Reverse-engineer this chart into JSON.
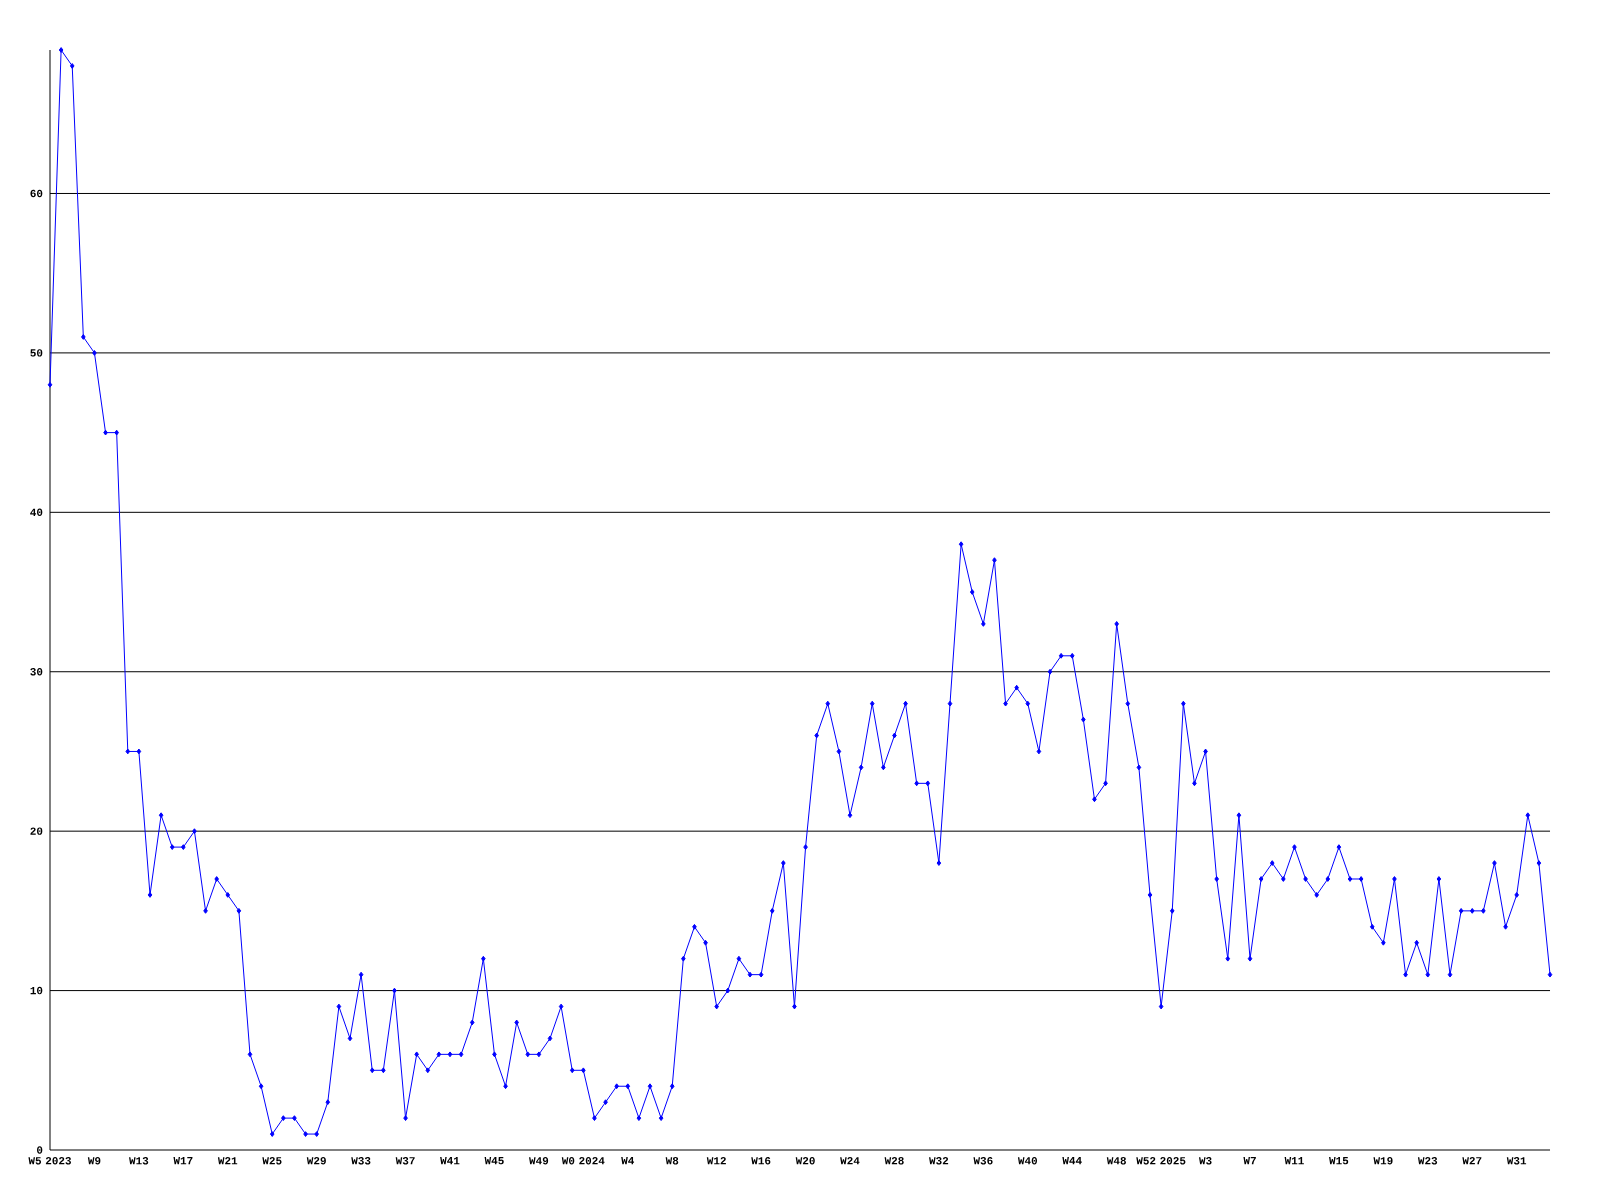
{
  "chart_data": {
    "type": "line",
    "categories": [
      "W5 2023",
      null,
      null,
      null,
      "W9",
      null,
      null,
      null,
      "W13",
      null,
      null,
      null,
      "W17",
      null,
      null,
      null,
      "W21",
      null,
      null,
      null,
      "W25",
      null,
      null,
      null,
      "W29",
      null,
      null,
      null,
      "W33",
      null,
      null,
      null,
      "W37",
      null,
      null,
      null,
      "W41",
      null,
      null,
      null,
      "W45",
      null,
      null,
      null,
      "W49",
      null,
      null,
      null,
      "W0 2024",
      null,
      null,
      null,
      "W4",
      null,
      null,
      null,
      "W8",
      null,
      null,
      null,
      "W12",
      null,
      null,
      null,
      "W16",
      null,
      null,
      null,
      "W20",
      null,
      null,
      null,
      "W24",
      null,
      null,
      null,
      "W28",
      null,
      null,
      null,
      "W32",
      null,
      null,
      null,
      "W36",
      null,
      null,
      null,
      "W40",
      null,
      null,
      null,
      "W44",
      null,
      null,
      null,
      "W48",
      null,
      null,
      null,
      "W52 2025",
      null,
      null,
      null,
      "W3",
      null,
      null,
      null,
      "W7",
      null,
      null,
      null,
      "W11",
      null,
      null,
      null,
      "W15",
      null,
      null,
      null,
      "W19",
      null,
      null,
      null,
      "W23",
      null,
      null,
      null,
      "W27",
      null,
      null,
      null,
      "W31",
      null,
      null,
      null
    ],
    "values": [
      48,
      69,
      68,
      51,
      50,
      45,
      45,
      25,
      25,
      16,
      21,
      19,
      19,
      20,
      15,
      17,
      16,
      15,
      6,
      4,
      1,
      2,
      2,
      1,
      1,
      3,
      9,
      7,
      11,
      5,
      5,
      10,
      2,
      6,
      5,
      6,
      6,
      6,
      8,
      12,
      6,
      4,
      8,
      6,
      6,
      7,
      9,
      5,
      5,
      2,
      3,
      4,
      4,
      2,
      4,
      2,
      4,
      12,
      14,
      13,
      9,
      10,
      12,
      11,
      11,
      15,
      18,
      9,
      19,
      26,
      28,
      25,
      21,
      24,
      28,
      24,
      26,
      28,
      23,
      23,
      18,
      28,
      38,
      35,
      33,
      37,
      28,
      29,
      28,
      25,
      30,
      31,
      31,
      27,
      22,
      23,
      33,
      28,
      24,
      16,
      9,
      15,
      28,
      23,
      25,
      17,
      12,
      21,
      12,
      17,
      18,
      17,
      19,
      17,
      16,
      17,
      19,
      17,
      17,
      14,
      13,
      17,
      11,
      13,
      11,
      17,
      11,
      15,
      15,
      15,
      18,
      14,
      16,
      21,
      18,
      11
    ],
    "color": "#0000ff",
    "ylim": [
      0,
      69
    ],
    "yticks": [
      0,
      10,
      20,
      30,
      40,
      50,
      60
    ],
    "grid": "y",
    "marker": "diamond",
    "line_style": "solid"
  }
}
